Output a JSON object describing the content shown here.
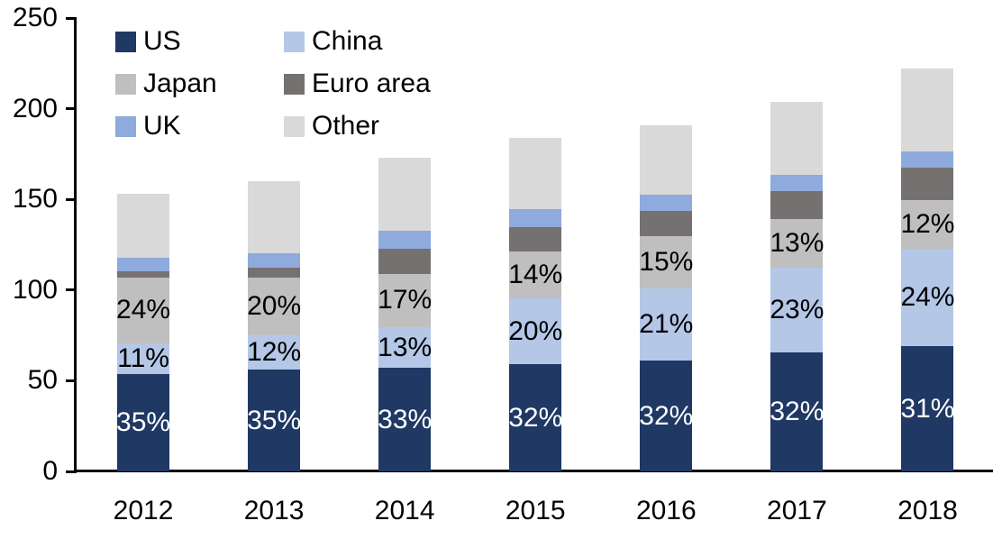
{
  "chart_data": {
    "type": "bar",
    "stacked": true,
    "title": "",
    "categories": [
      "2012",
      "2013",
      "2014",
      "2015",
      "2016",
      "2017",
      "2018"
    ],
    "totals": [
      153,
      160,
      173,
      184,
      191,
      204,
      222
    ],
    "series": [
      {
        "name": "US",
        "color": "#1F3864",
        "values": [
          53.5,
          56,
          57,
          59,
          61,
          65.5,
          69
        ],
        "labels": [
          "35%",
          "35%",
          "33%",
          "32%",
          "32%",
          "32%",
          "31%"
        ],
        "label_color": "#FFFFFF"
      },
      {
        "name": "China",
        "color": "#B4C7E7",
        "values": [
          17,
          19,
          22.5,
          36.5,
          40,
          47,
          53.5
        ],
        "labels": [
          "11%",
          "12%",
          "13%",
          "20%",
          "21%",
          "23%",
          "24%"
        ],
        "label_color": "#000000"
      },
      {
        "name": "Japan",
        "color": "#BFBFBF",
        "values": [
          36.5,
          32,
          29.5,
          26,
          28.5,
          26.5,
          27
        ],
        "labels": [
          "24%",
          "20%",
          "17%",
          "14%",
          "15%",
          "13%",
          "12%"
        ],
        "label_color": "#000000"
      },
      {
        "name": "Euro area",
        "color": "#767171",
        "values": [
          3.5,
          5.5,
          14,
          13,
          14,
          15.5,
          18
        ],
        "labels": [
          "",
          "",
          "",
          "",
          "",
          "",
          ""
        ],
        "label_color": "#000000"
      },
      {
        "name": "UK",
        "color": "#8FAADC",
        "values": [
          7.5,
          8,
          9.5,
          10,
          9,
          9,
          9
        ],
        "labels": [
          "",
          "",
          "",
          "",
          "",
          "",
          ""
        ],
        "label_color": "#000000"
      },
      {
        "name": "Other",
        "color": "#D9D9D9",
        "values": [
          35,
          39.5,
          40.5,
          39.5,
          38.5,
          40.5,
          45.5
        ],
        "labels": [
          "",
          "",
          "",
          "",
          "",
          "",
          ""
        ],
        "label_color": "#000000"
      }
    ],
    "y_axis": {
      "min": 0,
      "max": 250,
      "tick_step": 50,
      "tick_labels": [
        "0",
        "50",
        "100",
        "150",
        "200",
        "250"
      ],
      "grid": false
    },
    "x_axis": {
      "tick_labels": [
        "2012",
        "2013",
        "2014",
        "2015",
        "2016",
        "2017",
        "2018"
      ]
    },
    "legend": {
      "position": "top-left",
      "columns": 2,
      "entries": [
        "US",
        "China",
        "Japan",
        "Euro area",
        "UK",
        "Other"
      ]
    }
  }
}
